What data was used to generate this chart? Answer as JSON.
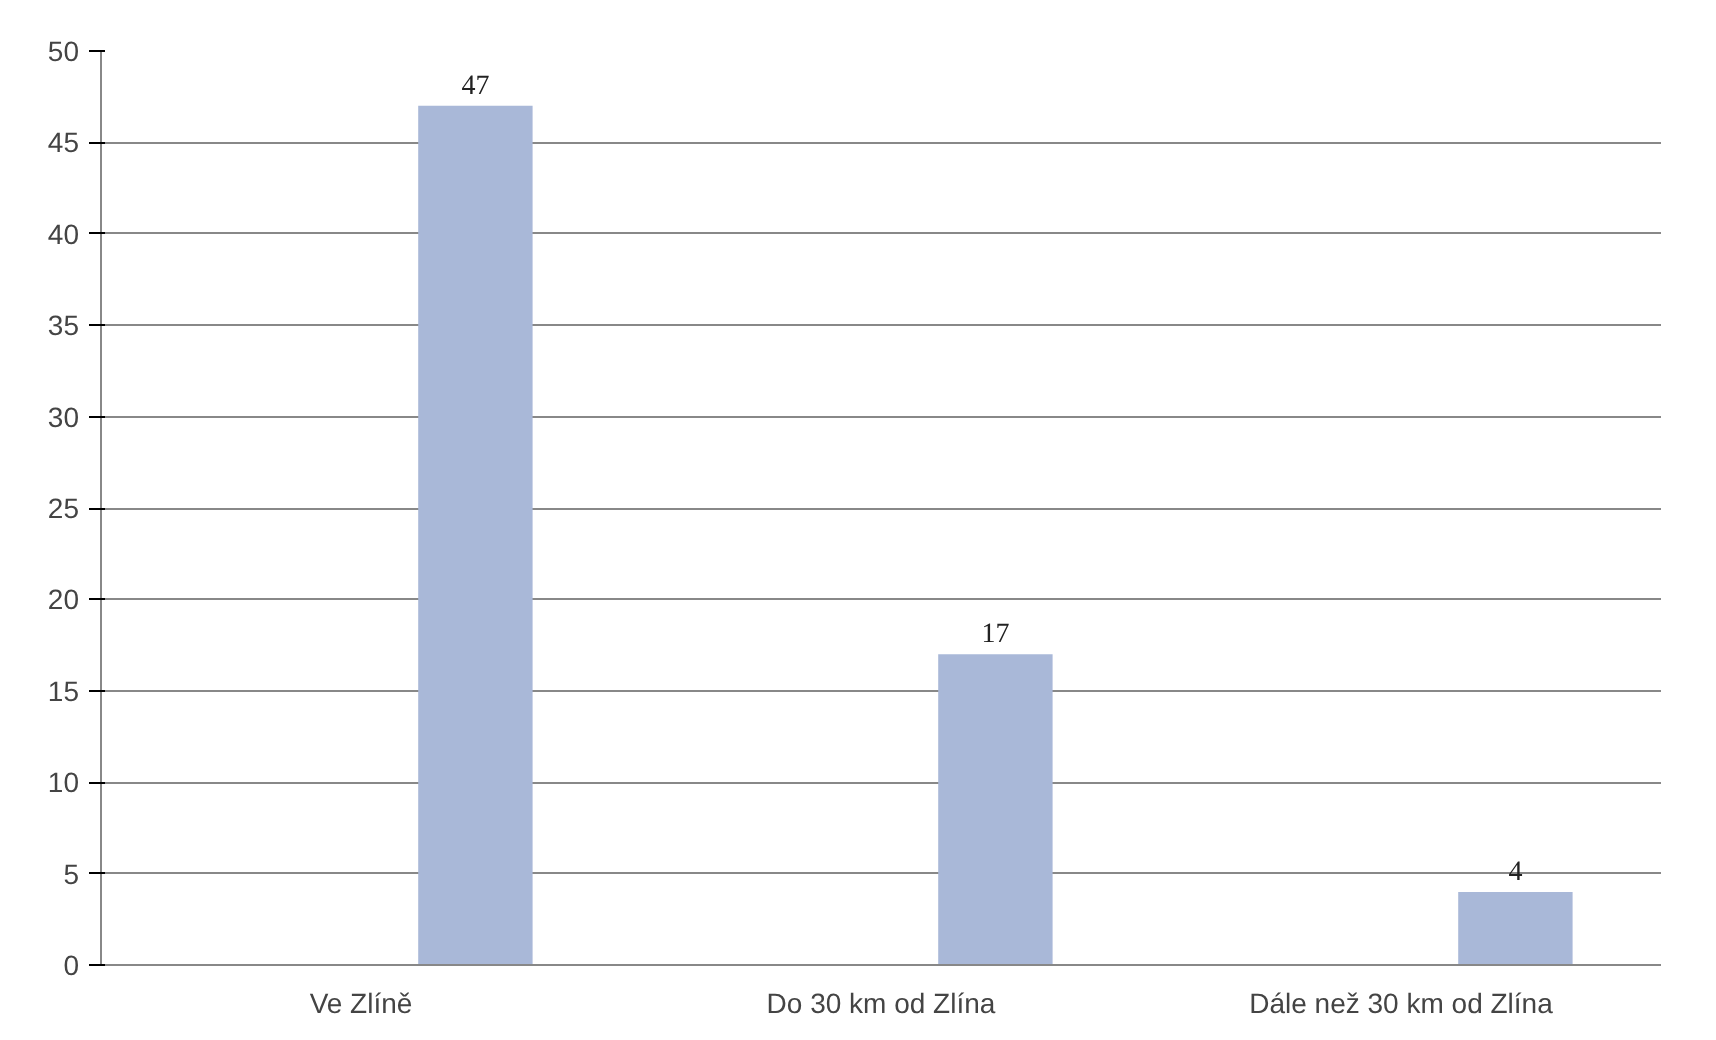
{
  "chart_data": {
    "type": "bar",
    "categories": [
      "Ve Zlíně",
      "Do 30 km od Zlína",
      "Dále než 30 km od Zlína"
    ],
    "values": [
      47,
      17,
      4
    ],
    "color": "#a9b8d8",
    "ylim": [
      0,
      50
    ],
    "yticks": [
      0,
      5,
      10,
      15,
      20,
      25,
      30,
      35,
      40,
      45,
      50
    ],
    "grid": "y",
    "data_labels": true
  }
}
